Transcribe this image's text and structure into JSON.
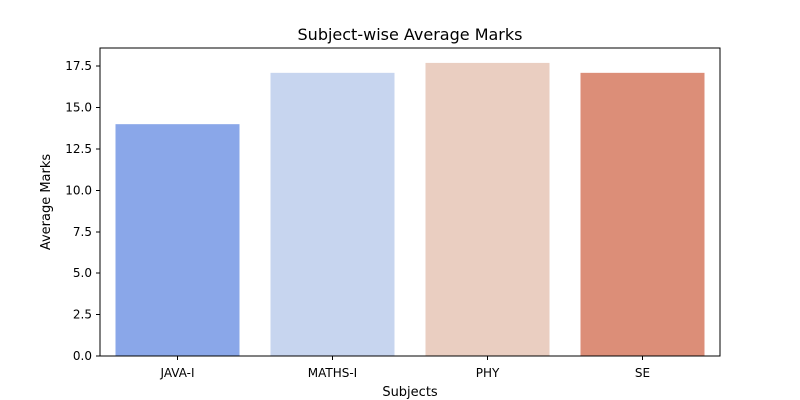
{
  "chart_data": {
    "type": "bar",
    "title": "Subject-wise Average Marks",
    "xlabel": "Subjects",
    "ylabel": "Average Marks",
    "categories": [
      "JAVA-I",
      "MATHS-I",
      "PHY",
      "SE"
    ],
    "values": [
      14.0,
      17.1,
      17.7,
      17.1
    ],
    "colors": [
      "#8aa7e9",
      "#c7d5ef",
      "#eacec1",
      "#dc8e78"
    ],
    "ylim": [
      0,
      18.6
    ],
    "yticks": [
      0.0,
      2.5,
      5.0,
      7.5,
      10.0,
      12.5,
      15.0,
      17.5
    ],
    "ytick_labels": [
      "0.0",
      "2.5",
      "5.0",
      "7.5",
      "10.0",
      "12.5",
      "15.0",
      "17.5"
    ],
    "grid": false,
    "legend": false
  }
}
